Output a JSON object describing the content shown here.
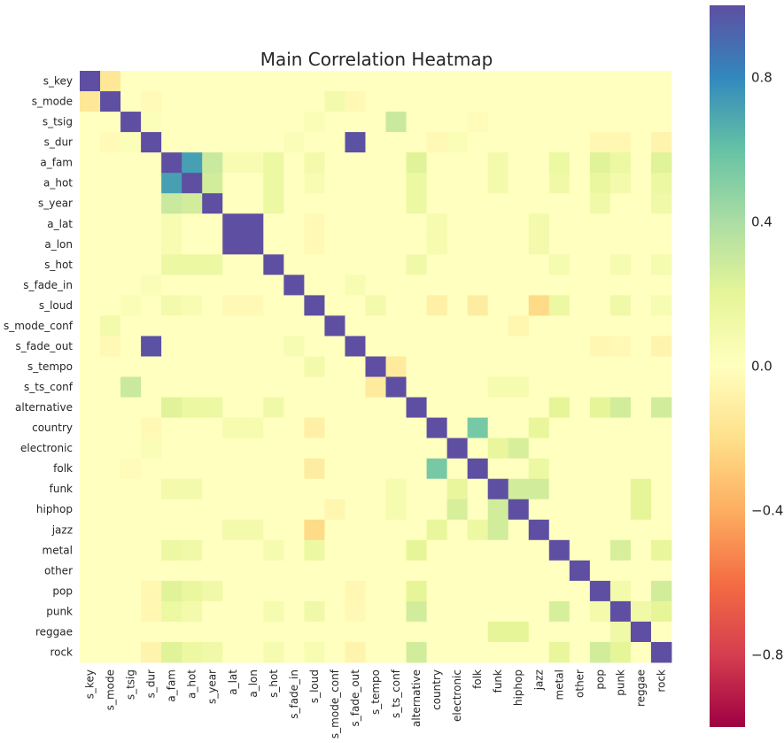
{
  "chart_data": {
    "type": "heatmap",
    "title": "Main Correlation Heatmap",
    "colormap": "Spectral",
    "vmin": -1,
    "vmax": 1,
    "colorbar_ticks": [
      0.8,
      0.4,
      0.0,
      -0.4,
      -0.8
    ],
    "colorbar_tick_labels": [
      "0.8",
      "0.4",
      "0.0",
      "−0.4",
      "−0.8"
    ],
    "grid": false,
    "labels": [
      "s_key",
      "s_mode",
      "s_tsig",
      "s_dur",
      "a_fam",
      "a_hot",
      "s_year",
      "a_lat",
      "a_lon",
      "s_hot",
      "s_fade_in",
      "s_loud",
      "s_mode_conf",
      "s_fade_out",
      "s_tempo",
      "s_ts_conf",
      "alternative",
      "country",
      "electronic",
      "folk",
      "funk",
      "hiphop",
      "jazz",
      "metal",
      "other",
      "pop",
      "punk",
      "reggae",
      "rock"
    ],
    "correlations": [
      [
        "s_key",
        "s_mode",
        -0.15
      ],
      [
        "s_tsig",
        "s_dur",
        0.03
      ],
      [
        "s_tsig",
        "s_loud",
        0.05
      ],
      [
        "s_tsig",
        "s_ts_conf",
        0.3
      ],
      [
        "s_tsig",
        "folk",
        -0.02
      ],
      [
        "s_dur",
        "s_mode",
        -0.03
      ],
      [
        "s_dur",
        "s_fade_out",
        0.99
      ],
      [
        "s_dur",
        "s_fade_in",
        0.04
      ],
      [
        "s_dur",
        "electronic",
        0.05
      ],
      [
        "s_dur",
        "country",
        -0.04
      ],
      [
        "s_dur",
        "pop",
        -0.05
      ],
      [
        "s_dur",
        "punk",
        -0.05
      ],
      [
        "s_dur",
        "rock",
        -0.07
      ],
      [
        "s_mode",
        "s_mode_conf",
        0.1
      ],
      [
        "s_mode",
        "s_fade_out",
        -0.04
      ],
      [
        "a_fam",
        "a_hot",
        0.72
      ],
      [
        "a_fam",
        "s_year",
        0.3
      ],
      [
        "a_fam",
        "a_lat",
        0.06
      ],
      [
        "a_fam",
        "a_lon",
        0.06
      ],
      [
        "a_fam",
        "s_hot",
        0.15
      ],
      [
        "a_fam",
        "s_loud",
        0.1
      ],
      [
        "a_fam",
        "alternative",
        0.22
      ],
      [
        "a_fam",
        "funk",
        0.1
      ],
      [
        "a_fam",
        "metal",
        0.15
      ],
      [
        "a_fam",
        "pop",
        0.22
      ],
      [
        "a_fam",
        "punk",
        0.15
      ],
      [
        "a_fam",
        "rock",
        0.22
      ],
      [
        "a_hot",
        "s_year",
        0.27
      ],
      [
        "a_hot",
        "s_hot",
        0.15
      ],
      [
        "a_hot",
        "s_loud",
        0.06
      ],
      [
        "a_hot",
        "alternative",
        0.15
      ],
      [
        "a_hot",
        "funk",
        0.1
      ],
      [
        "a_hot",
        "metal",
        0.12
      ],
      [
        "a_hot",
        "pop",
        0.17
      ],
      [
        "a_hot",
        "punk",
        0.1
      ],
      [
        "a_hot",
        "rock",
        0.15
      ],
      [
        "s_year",
        "s_hot",
        0.15
      ],
      [
        "s_year",
        "alternative",
        0.15
      ],
      [
        "s_year",
        "pop",
        0.12
      ],
      [
        "s_year",
        "rock",
        0.12
      ],
      [
        "a_lat",
        "a_lon",
        1.0
      ],
      [
        "a_lat",
        "s_loud",
        -0.04
      ],
      [
        "a_lat",
        "country",
        0.08
      ],
      [
        "a_lat",
        "jazz",
        0.1
      ],
      [
        "a_lon",
        "s_loud",
        -0.04
      ],
      [
        "a_lon",
        "country",
        0.08
      ],
      [
        "a_lon",
        "jazz",
        0.1
      ],
      [
        "s_hot",
        "alternative",
        0.12
      ],
      [
        "s_hot",
        "metal",
        0.08
      ],
      [
        "s_hot",
        "punk",
        0.08
      ],
      [
        "s_hot",
        "rock",
        0.08
      ],
      [
        "s_fade_in",
        "s_fade_out",
        0.07
      ],
      [
        "s_loud",
        "s_tempo",
        0.1
      ],
      [
        "s_loud",
        "country",
        -0.1
      ],
      [
        "s_loud",
        "folk",
        -0.12
      ],
      [
        "s_loud",
        "jazz",
        -0.22
      ],
      [
        "s_loud",
        "metal",
        0.15
      ],
      [
        "s_loud",
        "punk",
        0.12
      ],
      [
        "s_loud",
        "rock",
        0.07
      ],
      [
        "s_mode_conf",
        "hiphop",
        -0.06
      ],
      [
        "s_fade_out",
        "pop",
        -0.05
      ],
      [
        "s_fade_out",
        "punk",
        -0.04
      ],
      [
        "s_fade_out",
        "rock",
        -0.07
      ],
      [
        "s_tempo",
        "s_ts_conf",
        -0.13
      ],
      [
        "s_tempo",
        "s_loud",
        0.1
      ],
      [
        "s_ts_conf",
        "funk",
        0.08
      ],
      [
        "s_ts_conf",
        "hiphop",
        0.08
      ],
      [
        "alternative",
        "metal",
        0.2
      ],
      [
        "alternative",
        "pop",
        0.2
      ],
      [
        "alternative",
        "punk",
        0.27
      ],
      [
        "alternative",
        "rock",
        0.27
      ],
      [
        "country",
        "folk",
        0.55
      ],
      [
        "country",
        "jazz",
        0.18
      ],
      [
        "electronic",
        "hiphop",
        0.25
      ],
      [
        "electronic",
        "funk",
        0.18
      ],
      [
        "folk",
        "jazz",
        0.15
      ],
      [
        "funk",
        "hiphop",
        0.27
      ],
      [
        "funk",
        "jazz",
        0.27
      ],
      [
        "funk",
        "reggae",
        0.2
      ],
      [
        "hiphop",
        "reggae",
        0.2
      ],
      [
        "metal",
        "punk",
        0.25
      ],
      [
        "metal",
        "rock",
        0.18
      ],
      [
        "pop",
        "rock",
        0.27
      ],
      [
        "pop",
        "punk",
        0.1
      ],
      [
        "punk",
        "rock",
        0.2
      ],
      [
        "reggae",
        "punk",
        0.12
      ]
    ]
  }
}
